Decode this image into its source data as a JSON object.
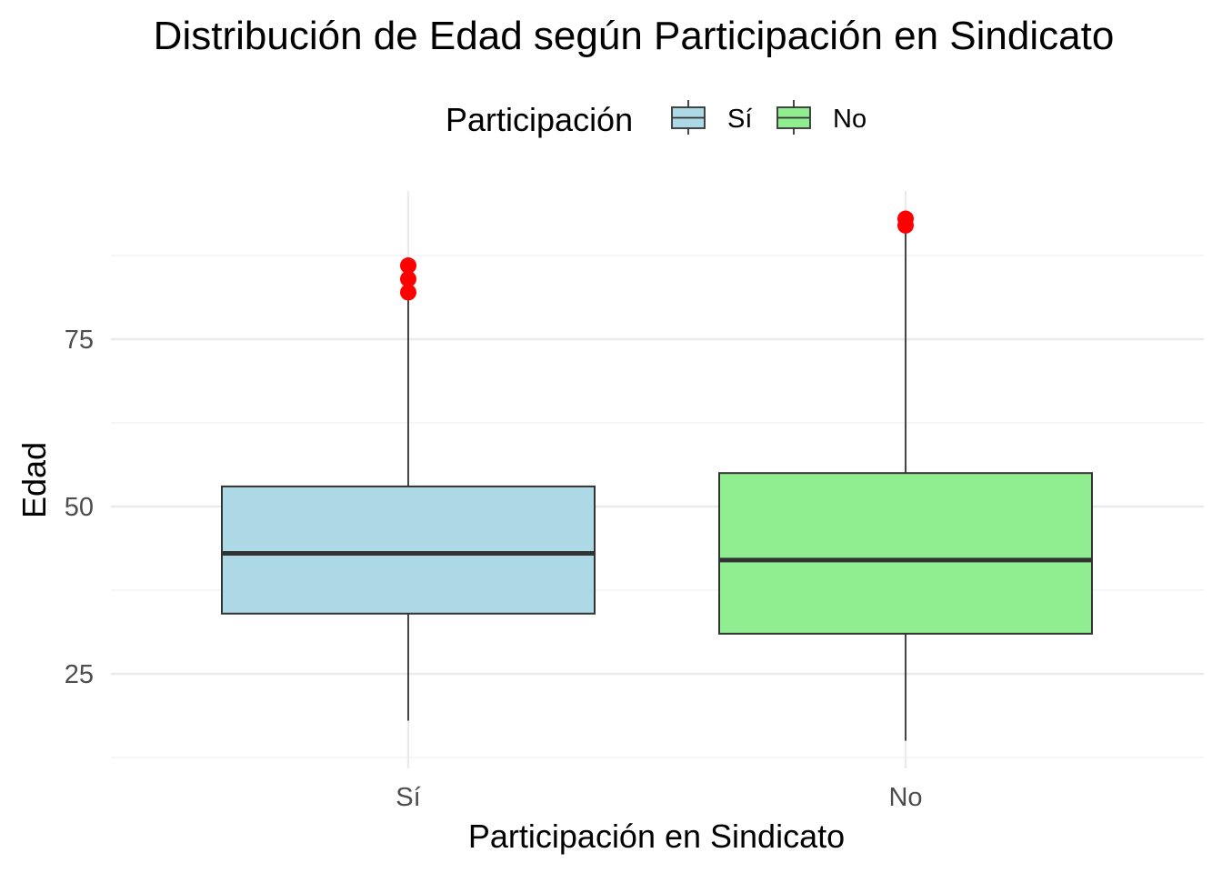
{
  "chart_data": {
    "type": "boxplot",
    "title": "Distribución de Edad según Participación en Sindicato",
    "xlabel": "Participación en Sindicato",
    "ylabel": "Edad",
    "categories": [
      "Sí",
      "No"
    ],
    "yticks": [
      25,
      50,
      75
    ],
    "ylim": [
      12,
      97
    ],
    "grid": true,
    "legend": {
      "title": "Participación",
      "position": "top",
      "entries": [
        {
          "label": "Sí",
          "color": "#ADD8E6"
        },
        {
          "label": "No",
          "color": "#90EE90"
        }
      ]
    },
    "boxes": [
      {
        "category": "Sí",
        "whisker_low": 18,
        "q1": 34,
        "median": 43,
        "q3": 53,
        "whisker_high": 82,
        "outliers": [
          82,
          84,
          86
        ],
        "fill": "#ADD8E6"
      },
      {
        "category": "No",
        "whisker_low": 15,
        "q1": 31,
        "median": 42,
        "q3": 55,
        "whisker_high": 91,
        "outliers": [
          92,
          93
        ],
        "fill": "#90EE90"
      }
    ],
    "outlier_color": "#FF0000"
  }
}
